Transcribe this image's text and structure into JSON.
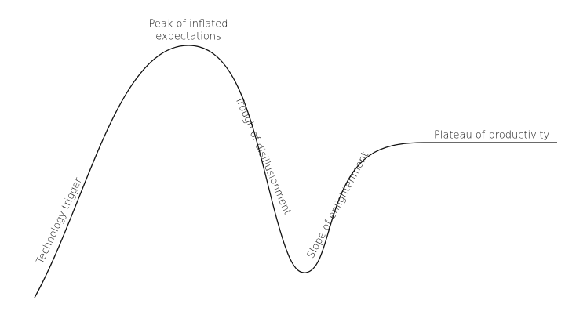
{
  "stages": [
    {
      "lines": [
        "Technology trigger"
      ]
    },
    {
      "lines": [
        "Peak of inflated",
        "expectations"
      ]
    },
    {
      "lines": [
        "Trough of disillusionment"
      ]
    },
    {
      "lines": [
        "Slope of enlightenment"
      ]
    },
    {
      "lines": [
        "Plateau of productivity"
      ]
    }
  ]
}
